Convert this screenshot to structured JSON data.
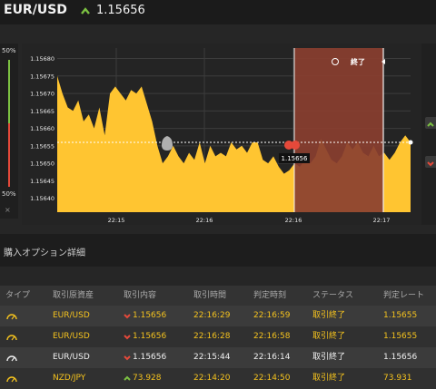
{
  "header": {
    "pair": "EUR/USD",
    "rate": "1.15656",
    "direction_icon": "chevron-up-icon",
    "accent": "#7cc142"
  },
  "gauge": {
    "top_label": "50%",
    "bottom_label": "50%",
    "up": 0.5,
    "down": 0.5,
    "close_label": "×"
  },
  "chart_data": {
    "type": "area",
    "x_ticks": [
      "22:15",
      "22:16",
      "22:16",
      "22:17"
    ],
    "y_ticks": [
      "1.15680",
      "1.15675",
      "1.15670",
      "1.15665",
      "1.15660",
      "1.15655",
      "1.15650",
      "1.15645",
      "1.15640"
    ],
    "ylim": [
      1.15636,
      1.15683
    ],
    "current_price_label": "1.15656",
    "expiry_label": "終了",
    "series": [
      {
        "values": [
          1.15675,
          1.1567,
          1.15666,
          1.15665,
          1.15668,
          1.15662,
          1.15664,
          1.1566,
          1.15666,
          1.15658,
          1.1567,
          1.15672,
          1.1567,
          1.15668,
          1.15671,
          1.1567,
          1.15672,
          1.15667,
          1.15662,
          1.15655,
          1.1565,
          1.15652,
          1.15655,
          1.15652,
          1.1565,
          1.15653,
          1.15651,
          1.15656,
          1.1565,
          1.15655,
          1.15652,
          1.15653,
          1.15652,
          1.15656,
          1.15654,
          1.15655,
          1.15653,
          1.15656,
          1.15656,
          1.15651,
          1.1565,
          1.15652,
          1.15649,
          1.15647,
          1.15648,
          1.1565,
          1.15649,
          1.15651,
          1.1565,
          1.15652,
          1.15657,
          1.15654,
          1.15651,
          1.1565,
          1.15652,
          1.15656,
          1.15654,
          1.15656,
          1.15653,
          1.15652,
          1.15655,
          1.15652,
          1.15653,
          1.15651,
          1.15653,
          1.15656,
          1.15658,
          1.15656
        ]
      }
    ]
  },
  "section": {
    "title": "購入オプション詳細"
  },
  "table": {
    "headers": [
      "タイプ",
      "取引原資産",
      "取引内容",
      "取引時間",
      "判定時刻",
      "ステータス",
      "判定レート"
    ],
    "rows": [
      {
        "asset": "EUR/USD",
        "direction": "down",
        "content": "1.15656",
        "time": "22:16:29",
        "judge": "22:16:59",
        "status": "取引終了",
        "rate": "1.15655",
        "color": "yellow"
      },
      {
        "asset": "EUR/USD",
        "direction": "down",
        "content": "1.15656",
        "time": "22:16:28",
        "judge": "22:16:58",
        "status": "取引終了",
        "rate": "1.15655",
        "color": "yellow"
      },
      {
        "asset": "EUR/USD",
        "direction": "down",
        "content": "1.15656",
        "time": "22:15:44",
        "judge": "22:16:14",
        "status": "取引終了",
        "rate": "1.15656",
        "color": "white"
      },
      {
        "asset": "NZD/JPY",
        "direction": "up",
        "content": "73.928",
        "time": "22:14:20",
        "judge": "22:14:50",
        "status": "取引終了",
        "rate": "73.931",
        "color": "yellow"
      }
    ]
  },
  "colors": {
    "area": "#ffc531",
    "expiry_zone": "#8a3f30",
    "down": "#e5493a",
    "up": "#7cc142",
    "grid": "#3c3c3c"
  }
}
